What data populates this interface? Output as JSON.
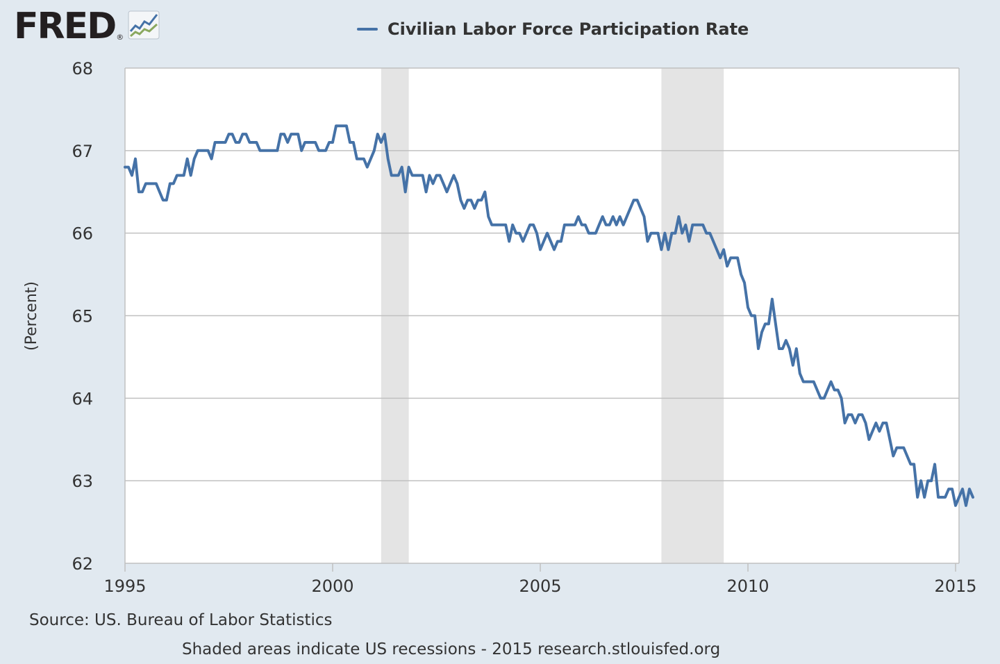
{
  "logo": {
    "text": "FRED",
    "reg": "®",
    "icon": "fred-chart-icon"
  },
  "colors": {
    "series": "#4572a7",
    "recession": "#e4e4e4",
    "background": "#e1e9f0",
    "plot": "#ffffff",
    "grid": "#c0c0c0"
  },
  "source": "Source: US. Bureau of Labor Statistics",
  "note": "Shaded areas indicate US recessions - 2015 research.stlouisfed.org",
  "chart_data": {
    "type": "line",
    "title": "",
    "xlabel": "",
    "ylabel": "(Percent)",
    "legend": "top-center",
    "grid": true,
    "xlim": [
      1995,
      2015.083
    ],
    "ylim": [
      62,
      68
    ],
    "xticks": [
      1995,
      2000,
      2005,
      2010,
      2015
    ],
    "xtick_labels": [
      "1995",
      "2000",
      "2005",
      "2010",
      "2015"
    ],
    "yticks": [
      62,
      63,
      64,
      65,
      66,
      67,
      68
    ],
    "ytick_labels": [
      "62",
      "63",
      "64",
      "65",
      "66",
      "67",
      "68"
    ],
    "recessions": [
      [
        2001.167,
        2001.833
      ],
      [
        2007.917,
        2009.417
      ]
    ],
    "series": [
      {
        "name": "Civilian Labor Force Participation Rate",
        "start": "1995-01",
        "frequency": "monthly",
        "values": [
          66.8,
          66.8,
          66.7,
          66.9,
          66.5,
          66.5,
          66.6,
          66.6,
          66.6,
          66.6,
          66.5,
          66.4,
          66.4,
          66.6,
          66.6,
          66.7,
          66.7,
          66.7,
          66.9,
          66.7,
          66.9,
          67.0,
          67.0,
          67.0,
          67.0,
          66.9,
          67.1,
          67.1,
          67.1,
          67.1,
          67.2,
          67.2,
          67.1,
          67.1,
          67.2,
          67.2,
          67.1,
          67.1,
          67.1,
          67.0,
          67.0,
          67.0,
          67.0,
          67.0,
          67.0,
          67.2,
          67.2,
          67.1,
          67.2,
          67.2,
          67.2,
          67.0,
          67.1,
          67.1,
          67.1,
          67.1,
          67.0,
          67.0,
          67.0,
          67.1,
          67.1,
          67.3,
          67.3,
          67.3,
          67.3,
          67.1,
          67.1,
          66.9,
          66.9,
          66.9,
          66.8,
          66.9,
          67.0,
          67.2,
          67.1,
          67.2,
          66.9,
          66.7,
          66.7,
          66.7,
          66.8,
          66.5,
          66.8,
          66.7,
          66.7,
          66.7,
          66.7,
          66.5,
          66.7,
          66.6,
          66.7,
          66.7,
          66.6,
          66.5,
          66.6,
          66.7,
          66.6,
          66.4,
          66.3,
          66.4,
          66.4,
          66.3,
          66.4,
          66.4,
          66.5,
          66.2,
          66.1,
          66.1,
          66.1,
          66.1,
          66.1,
          65.9,
          66.1,
          66.0,
          66.0,
          65.9,
          66.0,
          66.1,
          66.1,
          66.0,
          65.8,
          65.9,
          66.0,
          65.9,
          65.8,
          65.9,
          65.9,
          66.1,
          66.1,
          66.1,
          66.1,
          66.2,
          66.1,
          66.1,
          66.0,
          66.0,
          66.0,
          66.1,
          66.2,
          66.1,
          66.1,
          66.2,
          66.1,
          66.2,
          66.1,
          66.2,
          66.3,
          66.4,
          66.4,
          66.3,
          66.2,
          65.9,
          66.0,
          66.0,
          66.0,
          65.8,
          66.0,
          65.8,
          66.0,
          66.0,
          66.2,
          66.0,
          66.1,
          65.9,
          66.1,
          66.1,
          66.1,
          66.1,
          66.0,
          66.0,
          65.9,
          65.8,
          65.7,
          65.8,
          65.6,
          65.7,
          65.7,
          65.7,
          65.5,
          65.4,
          65.1,
          65.0,
          65.0,
          64.6,
          64.8,
          64.9,
          64.9,
          65.2,
          64.9,
          64.6,
          64.6,
          64.7,
          64.6,
          64.4,
          64.6,
          64.3,
          64.2,
          64.2,
          64.2,
          64.2,
          64.1,
          64.0,
          64.0,
          64.1,
          64.2,
          64.1,
          64.1,
          64.0,
          63.7,
          63.8,
          63.8,
          63.7,
          63.8,
          63.8,
          63.7,
          63.5,
          63.6,
          63.7,
          63.6,
          63.7,
          63.7,
          63.5,
          63.3,
          63.4,
          63.4,
          63.4,
          63.3,
          63.2,
          63.2,
          62.8,
          63.0,
          62.8,
          63.0,
          63.0,
          63.2,
          62.8,
          62.8,
          62.8,
          62.9,
          62.9,
          62.7,
          62.8,
          62.9,
          62.7,
          62.9,
          62.8
        ]
      }
    ]
  }
}
